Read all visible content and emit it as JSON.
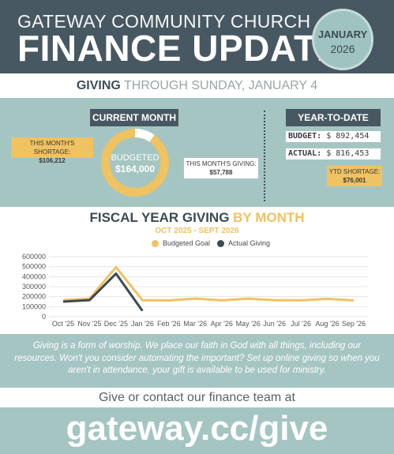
{
  "header": {
    "church_name": "GATEWAY COMMUNITY CHURCH",
    "title": "FINANCE UPDATE",
    "badge_month": "JANUARY",
    "badge_year": "2026"
  },
  "subheader": {
    "bold": "GIVING",
    "rest": "THROUGH SUNDAY, JANUARY 4"
  },
  "current_month": {
    "tab_label": "CURRENT MONTH",
    "shortage_label": "THIS MONTH'S SHORTAGE:",
    "shortage_value": "$106,212",
    "donut_label": "BUDGETED",
    "donut_value": "$164,000",
    "giving_label": "THIS MONTH'S GIVING:",
    "giving_value": "$57,788"
  },
  "ytd": {
    "tab_label": "YEAR-TO-DATE",
    "budget_label": "BUDGET:",
    "budget_value": "$ 892,454",
    "actual_label": "ACTUAL:",
    "actual_value": "$ 816,453",
    "shortage_label": "YTD SHORTAGE:",
    "shortage_value": "$76,001"
  },
  "colors": {
    "dark_slate": "#475862",
    "teal": "#a5c5c3",
    "gold": "#efc262",
    "actual_line": "#3b4a53"
  },
  "chart_data": {
    "type": "line",
    "title": "FISCAL YEAR GIVING",
    "title_accent": "BY MONTH",
    "subtitle": "OCT 2025 - SEPT 2026",
    "categories": [
      "Oct '25",
      "Nov '25",
      "Dec '25",
      "Jan '26",
      "Feb '26",
      "Mar '26",
      "Apr '26",
      "May '26",
      "Jun '26",
      "Jul '26",
      "Aug '26",
      "Sep '26"
    ],
    "y_ticks": [
      "600000",
      "500000",
      "400000",
      "300000",
      "200000",
      "100000",
      "0"
    ],
    "ylim": [
      0,
      600000
    ],
    "series": [
      {
        "name": "Budgeted Goal",
        "color": "#efc262",
        "values": [
          165000,
          180000,
          495000,
          164000,
          162000,
          180000,
          163000,
          180000,
          165000,
          163000,
          178000,
          162000
        ]
      },
      {
        "name": "Actual Giving",
        "color": "#3b4a53",
        "values": [
          150000,
          165000,
          430000,
          57788,
          null,
          null,
          null,
          null,
          null,
          null,
          null,
          null
        ]
      }
    ],
    "grid": true,
    "legend_position": "top-center"
  },
  "quote": "Giving is a form of worship. We place our faith in God with all things, including our resources. Won't you consider automating the important? Set up online giving so when you aren't in attendance, your gift is available to be used for ministry.",
  "cta": "Give or contact our finance team at",
  "url": "gateway.cc/give"
}
